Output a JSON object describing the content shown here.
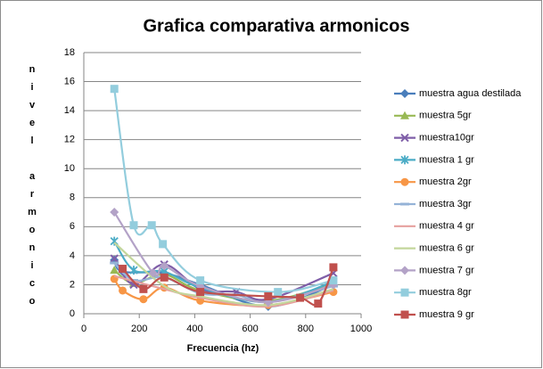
{
  "chart_data": {
    "type": "line",
    "title": "Grafica comparativa armonicos",
    "xlabel": "Frecuencia (hz)",
    "ylabel": "nivel armonico",
    "xlim": [
      0,
      1000
    ],
    "xticks": [
      0,
      200,
      400,
      600,
      800,
      1000
    ],
    "ylim": [
      0,
      18
    ],
    "yticks": [
      0,
      2,
      4,
      6,
      8,
      10,
      12,
      14,
      16,
      18
    ],
    "grid": true,
    "smooth": true,
    "legend": "right",
    "series": [
      {
        "name": "muestra agua destilada",
        "color": "#4a7ebb",
        "marker": "diamond",
        "x": [
          110,
          140,
          290,
          420,
          665,
          900
        ],
        "values": [
          3.7,
          2.9,
          2.8,
          2.0,
          0.5,
          2.0
        ]
      },
      {
        "name": "muestra 5gr",
        "color": "#98b954",
        "marker": "triangle",
        "x": [
          110,
          180,
          290,
          420,
          665,
          900
        ],
        "values": [
          3.0,
          2.1,
          2.7,
          1.6,
          0.9,
          2.1
        ]
      },
      {
        "name": "muestra10gr",
        "color": "#7f5ea8",
        "marker": "x",
        "x": [
          110,
          180,
          290,
          420,
          550,
          665,
          900
        ],
        "values": [
          3.8,
          2.0,
          3.4,
          1.7,
          1.5,
          1.0,
          2.8
        ]
      },
      {
        "name": "muestra 1 gr",
        "color": "#4bacc6",
        "marker": "asterisk",
        "x": [
          110,
          180,
          290,
          420,
          665,
          900
        ],
        "values": [
          5.0,
          3.0,
          2.9,
          1.8,
          0.8,
          2.2
        ]
      },
      {
        "name": "muestra 2gr",
        "color": "#f79646",
        "marker": "circle",
        "x": [
          110,
          140,
          215,
          290,
          420,
          665,
          900
        ],
        "values": [
          2.4,
          1.6,
          1.0,
          1.8,
          0.9,
          0.6,
          1.5
        ]
      },
      {
        "name": "muestra 3gr",
        "color": "#95b3d7",
        "marker": "dash",
        "x": [
          110,
          180,
          290,
          420,
          550,
          665,
          900
        ],
        "values": [
          3.5,
          2.3,
          2.5,
          1.4,
          1.3,
          0.8,
          1.9
        ]
      },
      {
        "name": "muestra 4 gr",
        "color": "#e6a09e",
        "marker": "none",
        "x": [
          110,
          290,
          420,
          665,
          900
        ],
        "values": [
          2.6,
          1.7,
          1.1,
          0.5,
          1.6
        ]
      },
      {
        "name": "muestra 6 gr",
        "color": "#c3d69b",
        "marker": "none",
        "x": [
          110,
          290,
          420,
          665,
          900
        ],
        "values": [
          4.9,
          1.9,
          1.2,
          0.6,
          1.7
        ]
      },
      {
        "name": "muestra 7 gr",
        "color": "#b3a2c7",
        "marker": "diamond",
        "x": [
          110,
          250,
          290,
          420,
          665,
          900
        ],
        "values": [
          7.0,
          2.8,
          3.3,
          1.9,
          0.8,
          2.0
        ]
      },
      {
        "name": "muestra 8gr",
        "color": "#93cddd",
        "marker": "square",
        "x": [
          110,
          180,
          245,
          285,
          420,
          700,
          900
        ],
        "values": [
          15.5,
          6.1,
          6.1,
          4.8,
          2.3,
          1.5,
          2.3
        ]
      },
      {
        "name": "muestra 9 gr",
        "color": "#c0504d",
        "marker": "square",
        "x": [
          140,
          215,
          290,
          420,
          665,
          780,
          845,
          900
        ],
        "values": [
          3.1,
          1.7,
          2.5,
          1.5,
          1.2,
          1.1,
          0.7,
          3.2
        ]
      }
    ]
  }
}
